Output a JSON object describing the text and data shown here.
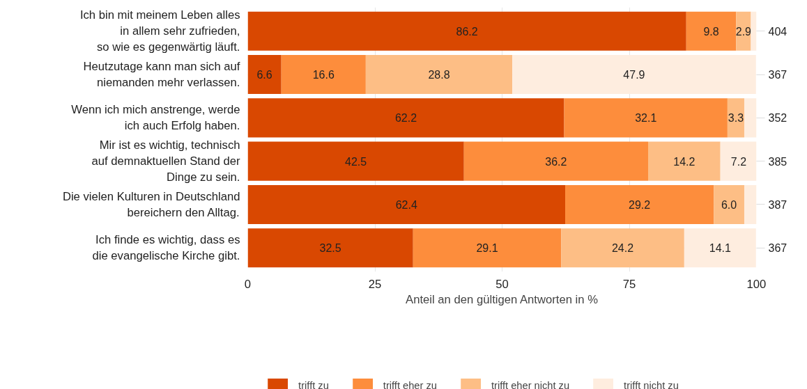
{
  "chart_data": {
    "type": "bar",
    "orientation": "horizontal",
    "stacked": true,
    "categories": [
      "Ich bin mit meinem Leben alles\nin allem sehr zufrieden,\nso wie es gegenwärtig läuft.",
      "Heutzutage kann man sich auf\nniemanden mehr verlassen.",
      "Wenn ich mich anstrenge, werde\nich auch Erfolg haben.",
      "Mir ist es wichtig, technisch\nauf demnaktuellen Stand der\nDinge zu sein.",
      "Die vielen Kulturen in Deutschland\nbereichern den Alltag.",
      "Ich finde es wichtig, dass es\ndie evangelische Kirche gibt."
    ],
    "series": [
      {
        "name": "trifft zu",
        "color": "#d94801",
        "values": [
          86.2,
          6.6,
          62.2,
          42.5,
          62.4,
          32.5
        ],
        "value_labels": [
          "86.2",
          "6.6",
          "62.2",
          "42.5",
          "62.4",
          "32.5"
        ]
      },
      {
        "name": "trifft eher zu",
        "color": "#fd8d3c",
        "values": [
          9.8,
          16.6,
          32.1,
          36.2,
          29.2,
          29.1
        ],
        "value_labels": [
          "9.8",
          "16.6",
          "32.1",
          "36.2",
          "29.2",
          "29.1"
        ]
      },
      {
        "name": "trifft eher nicht zu",
        "color": "#fdbe85",
        "values": [
          2.9,
          28.8,
          3.3,
          14.2,
          6.0,
          24.2
        ],
        "value_labels": [
          "2.9",
          "28.8",
          "3.3",
          "14.2",
          "6.0",
          "24.2"
        ]
      },
      {
        "name": "trifft nicht zu",
        "color": "#feeddf",
        "values": [
          1.1,
          47.9,
          2.4,
          7.2,
          2.4,
          14.1
        ],
        "value_labels": [
          null,
          "47.9",
          null,
          "7.2",
          null,
          "14.1"
        ]
      }
    ],
    "xlabel": "Anteil an den gültigen Antworten in %",
    "xlim": [
      0,
      100
    ],
    "xticks": [
      0,
      25,
      50,
      75,
      100
    ],
    "annotations": [
      "404",
      "367",
      "352",
      "385",
      "387",
      "367"
    ],
    "grid": true,
    "legend": "bottom"
  }
}
